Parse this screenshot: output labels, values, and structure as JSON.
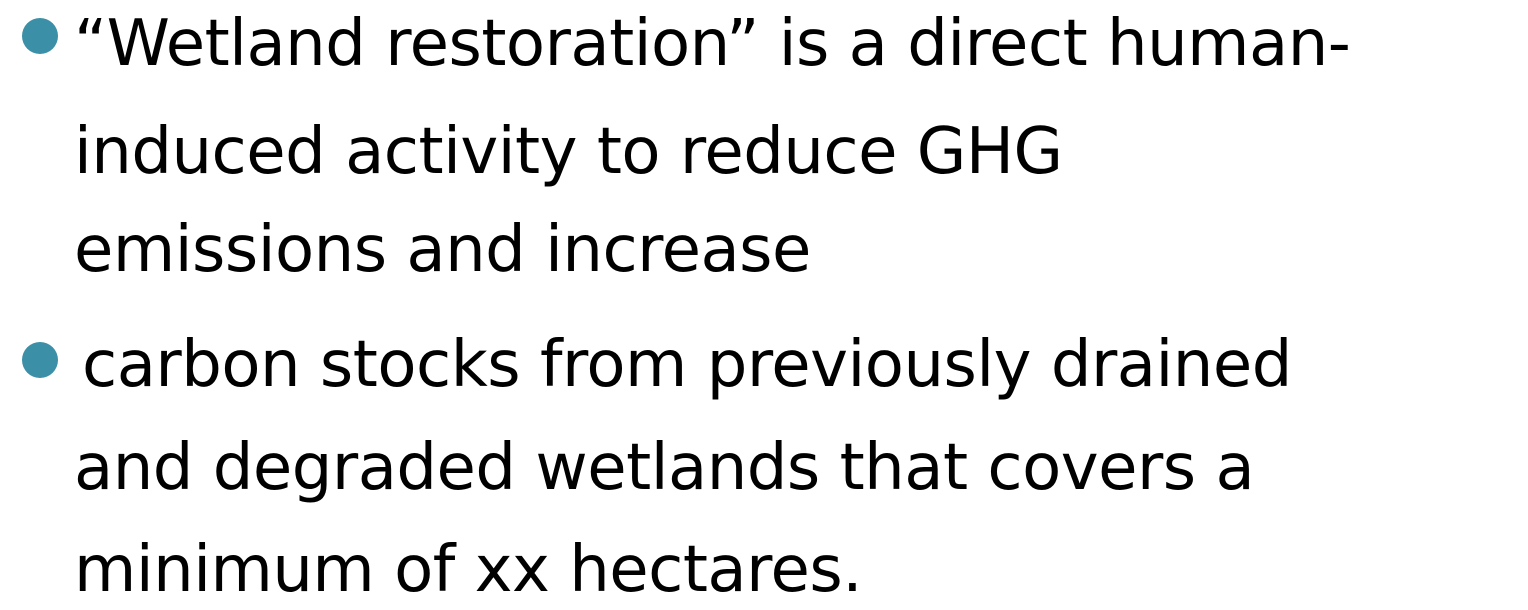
{
  "bullets": [
    [
      "“Wetland restoration” is a direct human-",
      "induced activity to reduce GHG",
      "emissions and increase"
    ],
    [
      "carbon stocks from previously drained",
      "and degraded wetlands that covers a",
      "minimum of xx hectares."
    ]
  ]
}
